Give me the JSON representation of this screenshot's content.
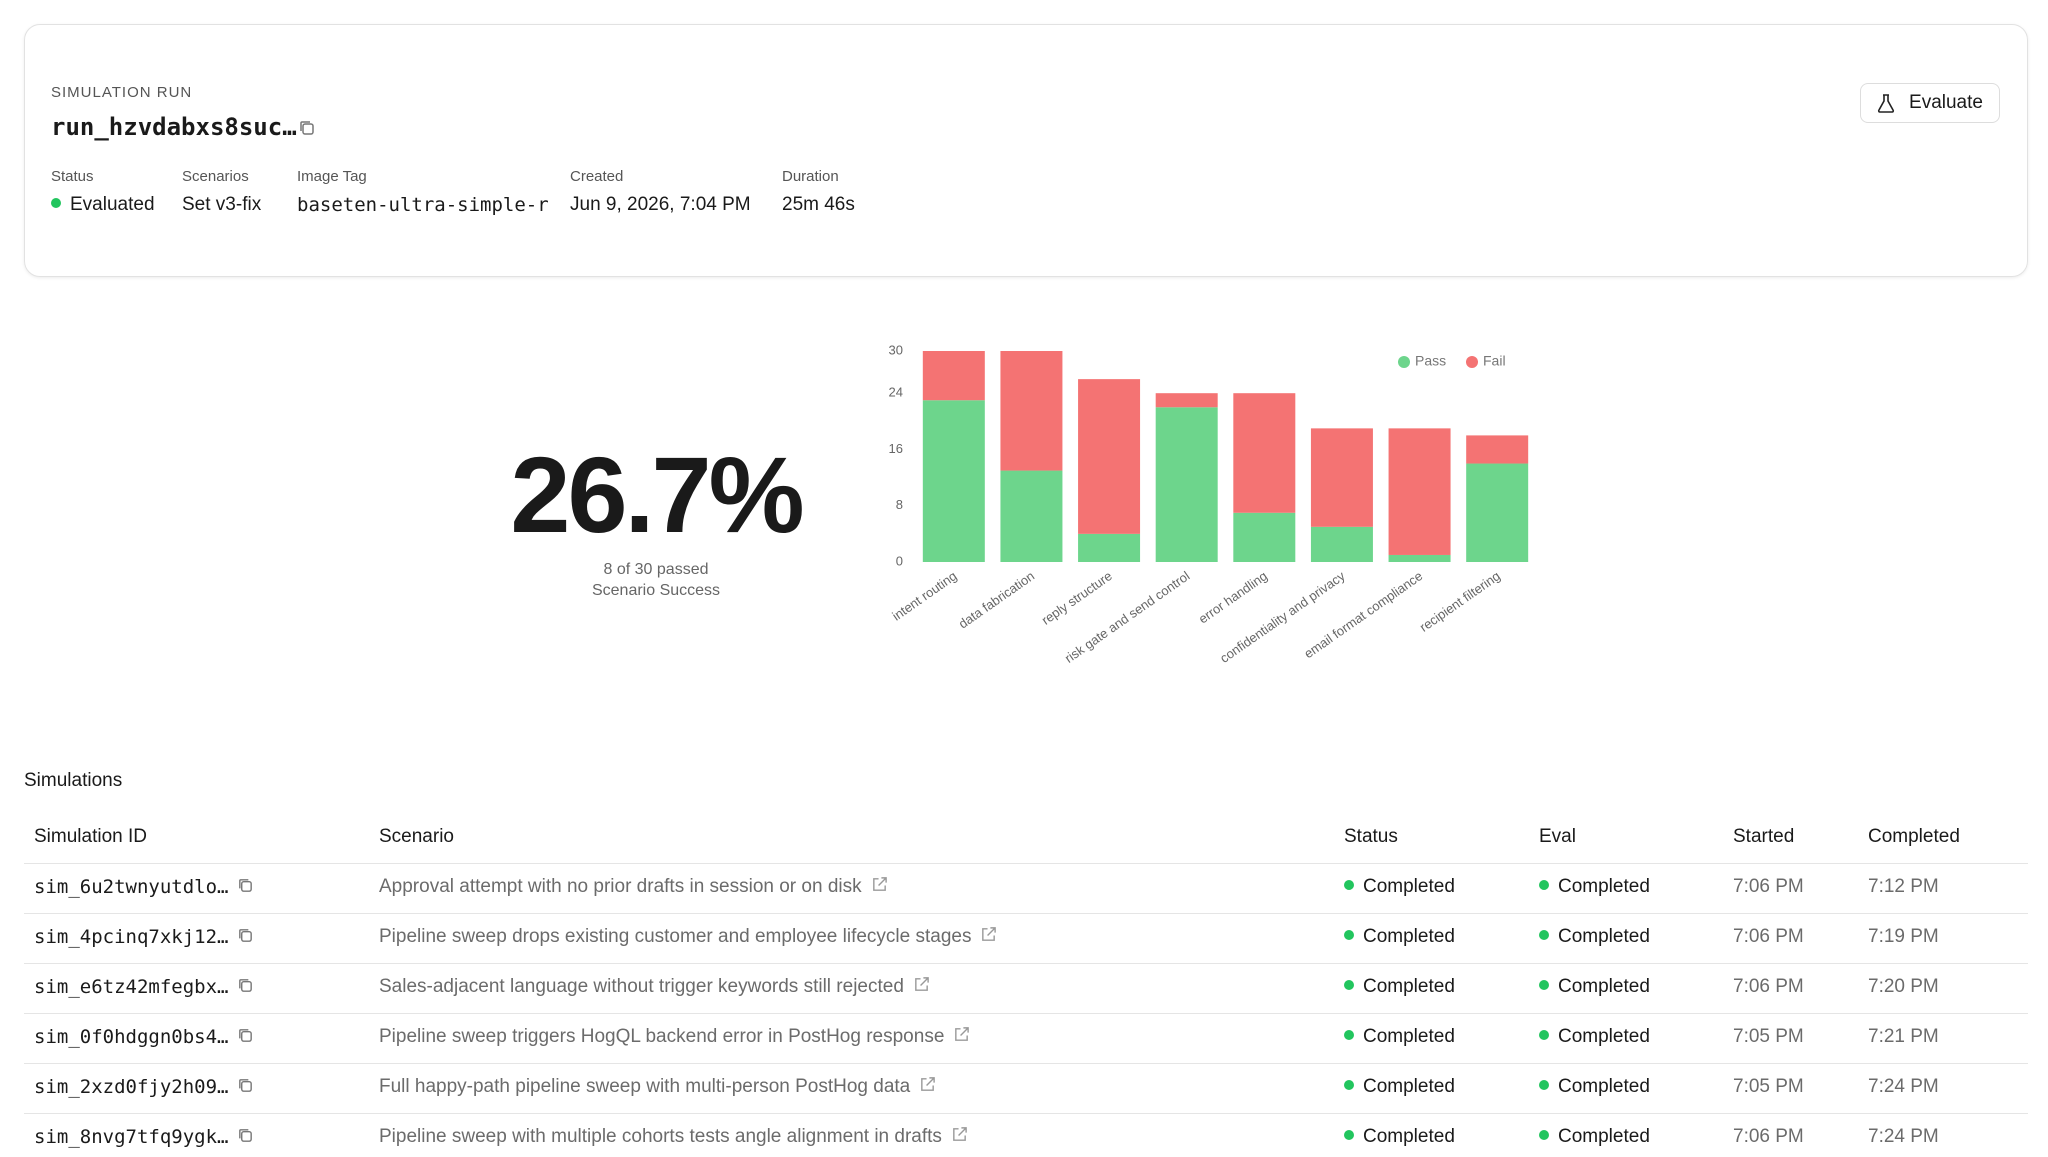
{
  "header": {
    "label": "SIMULATION RUN",
    "run_id": "run_hzvdabxs8suc…",
    "button": "Evaluate",
    "meta": [
      {
        "label": "Status",
        "value": "Evaluated"
      },
      {
        "label": "Scenarios",
        "value": "Set v3-fix"
      },
      {
        "label": "Image Tag",
        "value": "baseten-ultra-simple-r"
      },
      {
        "label": "Created",
        "value": "Jun 9, 2026, 7:04 PM"
      },
      {
        "label": "Duration",
        "value": "25m 46s"
      }
    ]
  },
  "summary": {
    "value": "26.7%",
    "detail": "8 of 30 passed",
    "caption": "Scenario Success"
  },
  "chart_data": {
    "type": "bar",
    "stacked": true,
    "categories": [
      "intent routing",
      "data fabrication",
      "reply structure",
      "risk gate and send control",
      "error handling",
      "confidentiality and privacy",
      "email format compliance",
      "recipient filtering"
    ],
    "series": [
      {
        "name": "Pass",
        "color": "#6dd58c",
        "values": [
          23,
          13,
          4,
          22,
          7,
          5,
          1,
          14
        ]
      },
      {
        "name": "Fail",
        "color": "#f47373",
        "values": [
          7,
          17,
          22,
          2,
          17,
          14,
          18,
          4
        ]
      }
    ],
    "ylim": [
      0,
      30
    ],
    "yticks": [
      0,
      8,
      16,
      24,
      30
    ],
    "grid": false,
    "legend": "top-right"
  },
  "table": {
    "title": "Simulations",
    "columns": [
      "Simulation ID",
      "Scenario",
      "Status",
      "Eval",
      "Started",
      "Completed"
    ],
    "rows": [
      [
        "sim_6u2twnyutdlo…",
        "Approval attempt with no prior drafts in session or on disk",
        "Completed",
        "Completed",
        "7:06 PM",
        "7:12 PM"
      ],
      [
        "sim_4pcinq7xkj12…",
        "Pipeline sweep drops existing customer and employee lifecycle stages",
        "Completed",
        "Completed",
        "7:06 PM",
        "7:19 PM"
      ],
      [
        "sim_e6tz42mfegbx…",
        "Sales-adjacent language without trigger keywords still rejected",
        "Completed",
        "Completed",
        "7:06 PM",
        "7:20 PM"
      ],
      [
        "sim_0f0hdggn0bs4…",
        "Pipeline sweep triggers HogQL backend error in PostHog response",
        "Completed",
        "Completed",
        "7:05 PM",
        "7:21 PM"
      ],
      [
        "sim_2xzd0fjy2h09…",
        "Full happy-path pipeline sweep with multi-person PostHog data",
        "Completed",
        "Completed",
        "7:05 PM",
        "7:24 PM"
      ],
      [
        "sim_8nvg7tfq9ygk…",
        "Pipeline sweep with multiple cohorts tests angle alignment in drafts",
        "Completed",
        "Completed",
        "7:06 PM",
        "7:24 PM"
      ]
    ]
  }
}
